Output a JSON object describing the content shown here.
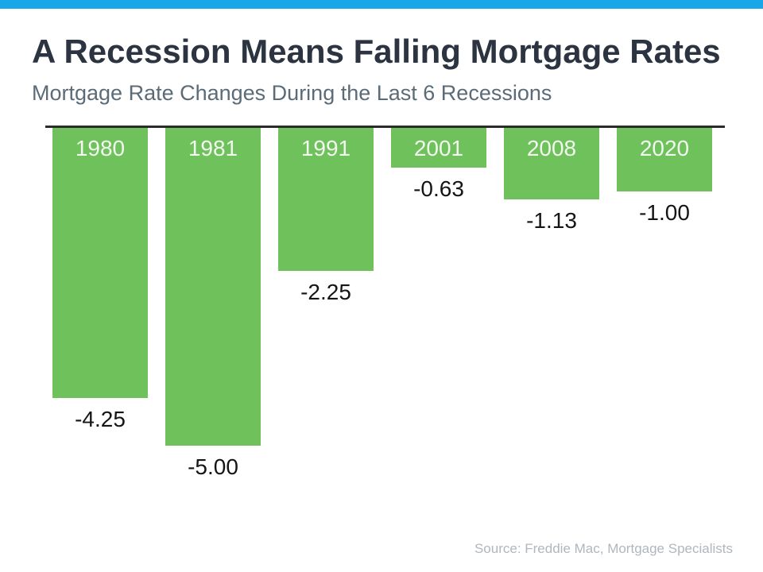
{
  "header": {
    "title": "A Recession Means Falling Mortgage Rates",
    "subtitle": "Mortgage Rate Changes During the Last 6 Recessions"
  },
  "footer": {
    "source": "Source: Freddie Mac, Mortgage Specialists"
  },
  "colors": {
    "top_bar": "#1AA7EA",
    "title": "#2B3440",
    "subtitle": "#5B6B77",
    "bar_green": "#6FC25B",
    "baseline_divider": "#2B2B2B",
    "year_label": "#F2F7F0",
    "value_label": "#151515",
    "source_text": "#AFB7BE"
  },
  "chart_data": {
    "type": "bar",
    "orientation": "columns-hanging-below-baseline",
    "title": "A Recession Means Falling Mortgage Rates",
    "subtitle": "Mortgage Rate Changes During the Last 6 Recessions",
    "categories": [
      "1980",
      "1981",
      "1991",
      "2001",
      "2008",
      "2020"
    ],
    "values": [
      -4.25,
      -5.0,
      -2.25,
      -0.63,
      -1.13,
      -1.0
    ],
    "value_labels": [
      "-4.25",
      "-5.00",
      "-2.25",
      "-0.63",
      "-1.13",
      "-1.00"
    ],
    "xlabel": "",
    "ylabel": "",
    "ylim": [
      -5.5,
      0
    ],
    "baseline": 0,
    "grid": false,
    "legend": false,
    "bar_color": "#6FC25B",
    "source": "Source: Freddie Mac, Mortgage Specialists"
  }
}
